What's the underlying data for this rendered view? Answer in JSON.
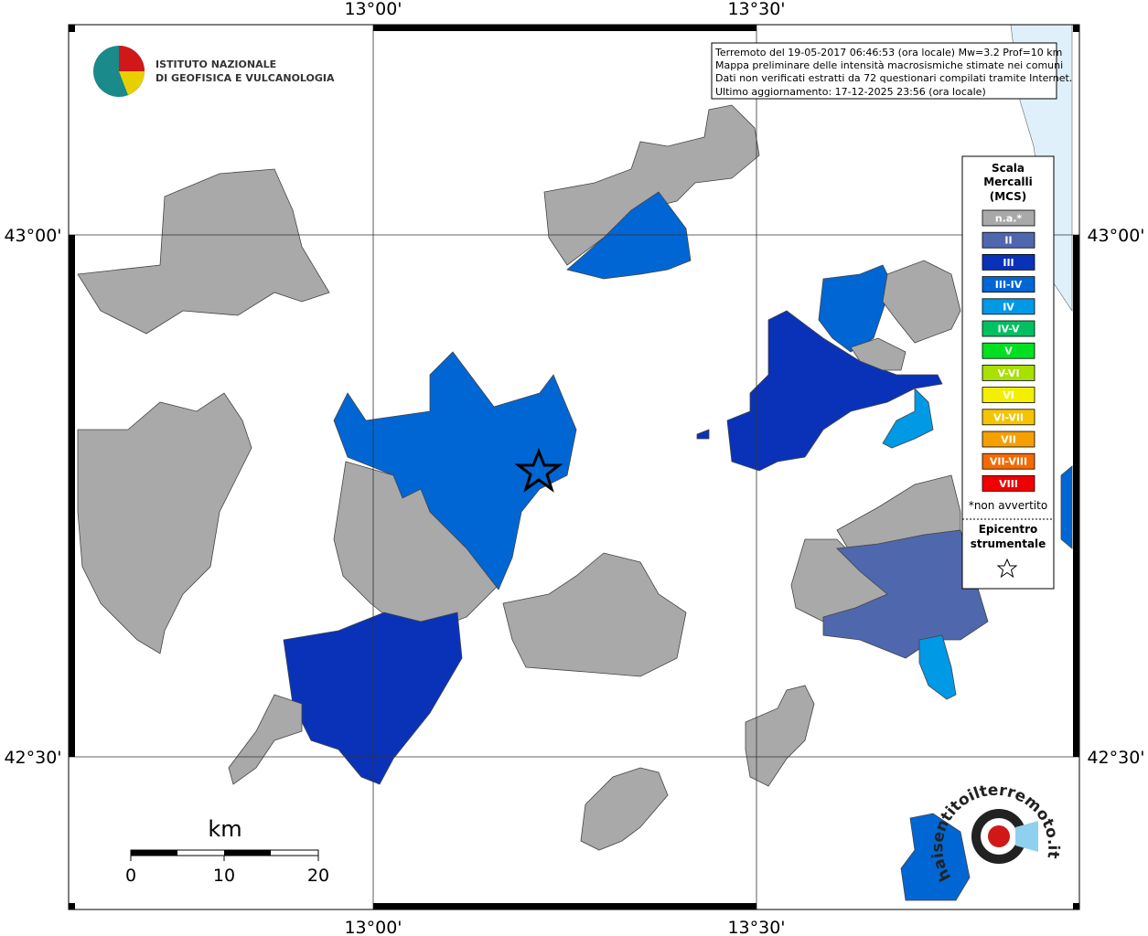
{
  "header": {
    "institute_line1": "ISTITUTO NAZIONALE",
    "institute_line2": "DI GEOFISICA E VULCANOLOGIA"
  },
  "axes": {
    "lon_labels": [
      "13°00'",
      "13°30'"
    ],
    "lat_labels": [
      "43°00'",
      "42°30'"
    ]
  },
  "info_box": [
    "Terremoto del 19-05-2017 06:46:53 (ora locale) Mw=3.2 Prof=10 km",
    "Mappa preliminare delle intensità macrosismiche stimate nei comuni",
    "Dati non verificati estratti da 72 questionari compilati tramite Internet.",
    "Ultimo aggiornamento: 17-12-2025 23:56 (ora locale)"
  ],
  "legend": {
    "title": [
      "Scala",
      "Mercalli",
      "(MCS)"
    ],
    "items": [
      {
        "label": "n.a.*",
        "color": "#a9a9a9"
      },
      {
        "label": "II",
        "color": "#4f67ad"
      },
      {
        "label": "III",
        "color": "#0a32b8"
      },
      {
        "label": "III-IV",
        "color": "#0066d4"
      },
      {
        "label": "IV",
        "color": "#0099e6"
      },
      {
        "label": "IV-V",
        "color": "#00c060"
      },
      {
        "label": "V",
        "color": "#00e020"
      },
      {
        "label": "V-VI",
        "color": "#a8e000"
      },
      {
        "label": "VI",
        "color": "#f2f000"
      },
      {
        "label": "VI-VII",
        "color": "#f5c400"
      },
      {
        "label": "VII",
        "color": "#f5a000"
      },
      {
        "label": "VII-VIII",
        "color": "#f56a00"
      },
      {
        "label": "VIII",
        "color": "#f00000"
      }
    ],
    "note": "*non avvertito",
    "epicenter": [
      "Epicentro",
      "strumentale"
    ]
  },
  "scale_bar": {
    "unit": "km",
    "labels": [
      "0",
      "10",
      "20"
    ]
  },
  "logo": {
    "text": "haisentitoilterremoto.it"
  }
}
